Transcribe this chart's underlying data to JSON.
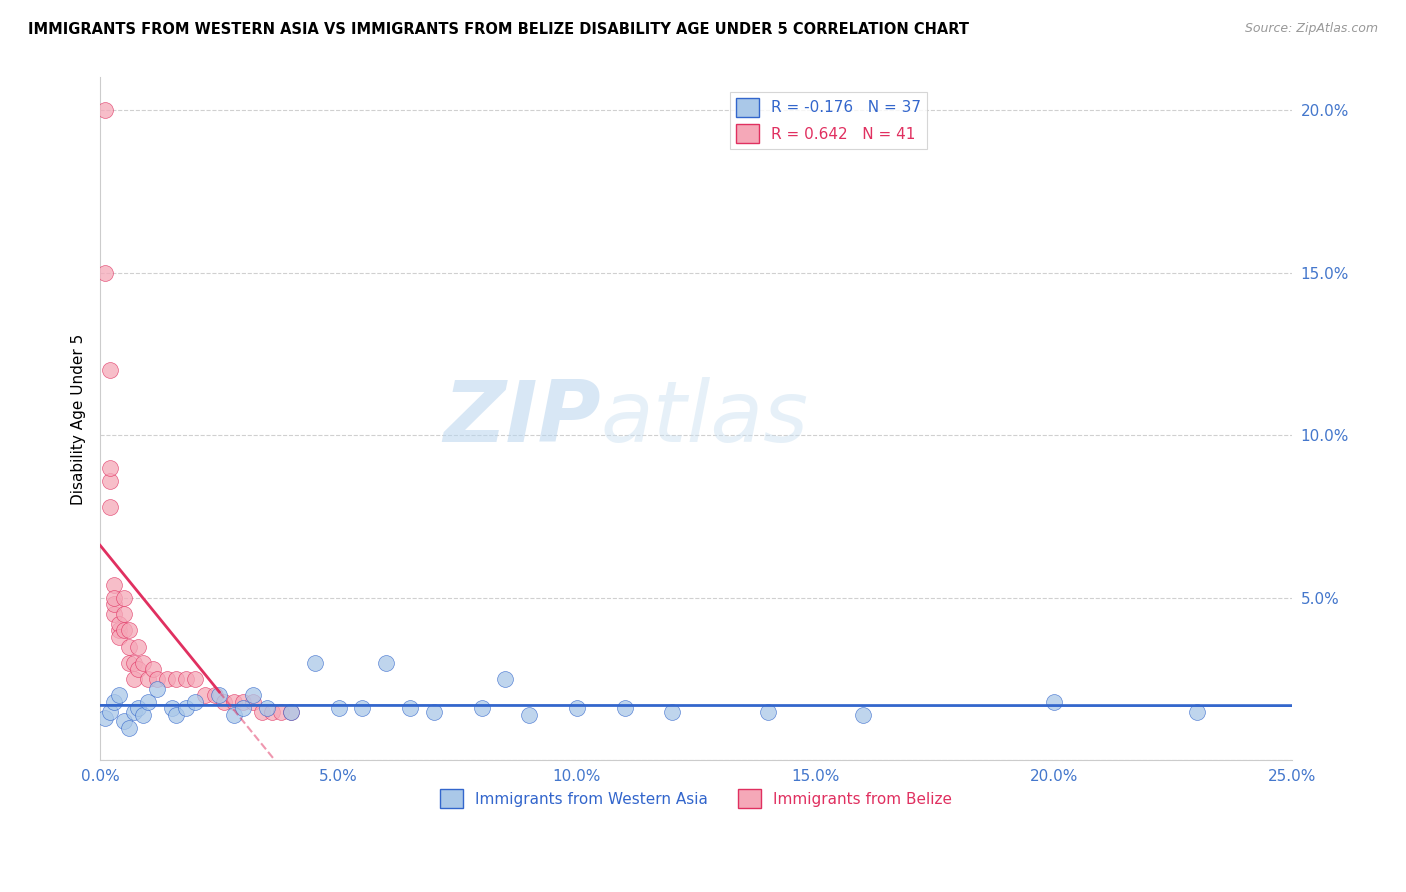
{
  "title": "IMMIGRANTS FROM WESTERN ASIA VS IMMIGRANTS FROM BELIZE DISABILITY AGE UNDER 5 CORRELATION CHART",
  "source": "Source: ZipAtlas.com",
  "ylabel": "Disability Age Under 5",
  "xlim": [
    0.0,
    0.25
  ],
  "ylim": [
    0.0,
    0.21
  ],
  "xticks": [
    0.0,
    0.05,
    0.1,
    0.15,
    0.2,
    0.25
  ],
  "yticks": [
    0.0,
    0.05,
    0.1,
    0.15,
    0.2
  ],
  "xtick_labels": [
    "0.0%",
    "5.0%",
    "10.0%",
    "15.0%",
    "20.0%",
    "25.0%"
  ],
  "ytick_labels": [
    "",
    "5.0%",
    "10.0%",
    "15.0%",
    "20.0%"
  ],
  "color_blue": "#aac8e8",
  "color_pink": "#f5a8b8",
  "line_blue": "#3366cc",
  "line_pink": "#e03060",
  "legend_r1": "R = -0.176",
  "legend_n1": "N = 37",
  "legend_r2": "R = 0.642",
  "legend_n2": "N = 41",
  "watermark_zip": "ZIP",
  "watermark_atlas": "atlas",
  "western_asia_x": [
    0.001,
    0.002,
    0.003,
    0.004,
    0.005,
    0.006,
    0.007,
    0.008,
    0.009,
    0.01,
    0.012,
    0.015,
    0.016,
    0.018,
    0.02,
    0.025,
    0.028,
    0.03,
    0.032,
    0.035,
    0.04,
    0.045,
    0.05,
    0.055,
    0.06,
    0.065,
    0.07,
    0.08,
    0.085,
    0.09,
    0.1,
    0.11,
    0.12,
    0.14,
    0.16,
    0.2,
    0.23
  ],
  "western_asia_y": [
    0.013,
    0.015,
    0.018,
    0.02,
    0.012,
    0.01,
    0.015,
    0.016,
    0.014,
    0.018,
    0.022,
    0.016,
    0.014,
    0.016,
    0.018,
    0.02,
    0.014,
    0.016,
    0.02,
    0.016,
    0.015,
    0.03,
    0.016,
    0.016,
    0.03,
    0.016,
    0.015,
    0.016,
    0.025,
    0.014,
    0.016,
    0.016,
    0.015,
    0.015,
    0.014,
    0.018,
    0.015
  ],
  "belize_x": [
    0.001,
    0.001,
    0.002,
    0.002,
    0.002,
    0.002,
    0.003,
    0.003,
    0.003,
    0.003,
    0.004,
    0.004,
    0.004,
    0.005,
    0.005,
    0.005,
    0.006,
    0.006,
    0.006,
    0.007,
    0.007,
    0.008,
    0.008,
    0.009,
    0.01,
    0.011,
    0.012,
    0.014,
    0.016,
    0.018,
    0.02,
    0.022,
    0.024,
    0.026,
    0.028,
    0.03,
    0.032,
    0.034,
    0.036,
    0.038,
    0.04
  ],
  "belize_y": [
    0.2,
    0.15,
    0.12,
    0.086,
    0.09,
    0.078,
    0.054,
    0.045,
    0.048,
    0.05,
    0.04,
    0.042,
    0.038,
    0.05,
    0.04,
    0.045,
    0.035,
    0.04,
    0.03,
    0.025,
    0.03,
    0.035,
    0.028,
    0.03,
    0.025,
    0.028,
    0.025,
    0.025,
    0.025,
    0.025,
    0.025,
    0.02,
    0.02,
    0.018,
    0.018,
    0.018,
    0.018,
    0.015,
    0.015,
    0.015,
    0.015
  ]
}
